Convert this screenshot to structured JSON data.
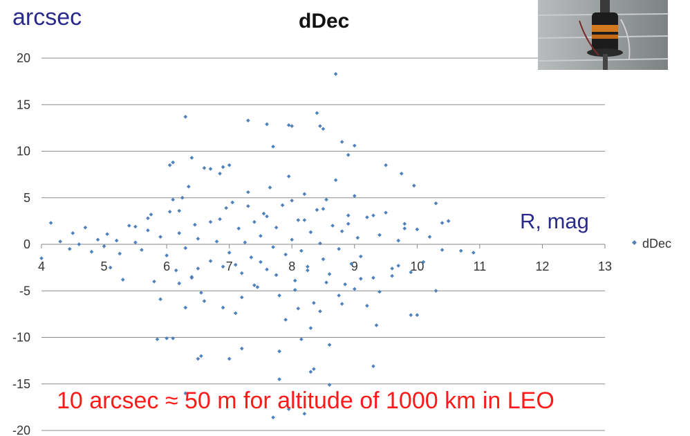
{
  "chart_data": {
    "type": "scatter",
    "title": "dDec",
    "ylabel": "arcsec",
    "xlabel": "R, mag",
    "xlim": [
      4,
      13
    ],
    "ylim": [
      -20,
      20
    ],
    "xticks": [
      "4",
      "5",
      "6",
      "7",
      "8",
      "9",
      "10",
      "11",
      "12",
      "13"
    ],
    "yticks": [
      "20",
      "15",
      "10",
      "5",
      "0",
      "-5",
      "-10",
      "-15",
      "-20"
    ],
    "grid": "horizontal",
    "legend_position": "right",
    "annotation": "10 arcsec ≈ 50 m for altitude of 1000 km in LEO",
    "series": [
      {
        "name": "dDec",
        "color": "#4f81bd",
        "x": [
          4.0,
          4.15,
          4.3,
          4.45,
          4.5,
          4.6,
          4.7,
          4.8,
          4.9,
          5.0,
          5.05,
          5.1,
          5.2,
          5.25,
          5.3,
          5.4,
          5.5,
          5.6,
          5.7,
          5.75,
          5.8,
          5.85,
          5.9,
          6.0,
          6.05,
          6.1,
          6.15,
          6.2,
          6.25,
          6.3,
          6.35,
          6.4,
          6.45,
          6.5,
          6.55,
          6.6,
          6.7,
          6.8,
          6.85,
          6.9,
          6.95,
          7.0,
          7.05,
          7.1,
          7.15,
          7.2,
          7.25,
          7.3,
          7.35,
          7.4,
          7.45,
          7.5,
          7.55,
          7.6,
          7.65,
          7.7,
          7.75,
          7.8,
          7.85,
          7.9,
          7.95,
          8.0,
          8.05,
          8.1,
          8.15,
          8.2,
          8.25,
          8.3,
          8.35,
          8.4,
          8.45,
          8.5,
          8.55,
          8.6,
          8.65,
          8.7,
          8.75,
          8.8,
          8.85,
          8.9,
          8.95,
          9.0,
          9.05,
          9.1,
          9.2,
          9.3,
          9.4,
          9.5,
          9.6,
          9.7,
          9.8,
          9.9,
          10.0,
          10.1,
          10.2,
          10.3,
          10.4,
          10.5,
          10.7,
          10.9,
          6.3,
          6.4,
          6.1,
          6.05,
          6.7,
          6.85,
          6.9,
          7.0,
          7.3,
          7.6,
          7.7,
          7.95,
          8.0,
          8.4,
          8.45,
          8.5,
          8.7,
          8.8,
          8.9,
          9.0,
          9.5,
          9.75,
          9.95,
          6.3,
          6.5,
          7.8,
          7.95,
          8.6,
          9.3,
          7.2,
          8.3,
          7.7,
          8.2,
          6.1,
          6.3,
          6.55,
          7.0,
          7.8,
          8.15,
          8.35,
          8.6,
          9.35,
          9.9,
          6.2,
          6.4,
          6.6,
          6.9,
          7.2,
          7.5,
          7.75,
          8.05,
          8.25,
          8.55,
          8.8,
          9.1,
          9.4,
          9.7,
          5.9,
          6.0,
          6.5,
          7.1,
          7.4,
          7.9,
          8.1,
          8.3,
          8.45,
          8.75,
          9.0,
          9.2,
          9.6,
          10.0,
          10.3,
          5.5,
          5.7,
          6.2,
          6.7,
          7.3,
          7.6,
          8.0,
          8.2,
          8.5,
          8.9,
          9.3,
          9.8,
          10.4
        ],
        "y": [
          -1.5,
          2.3,
          0.3,
          -0.5,
          1.2,
          0.0,
          1.8,
          -0.8,
          0.5,
          -0.2,
          1.1,
          -2.5,
          0.4,
          -1.0,
          -3.8,
          2.0,
          0.2,
          -0.6,
          1.5,
          3.2,
          -4.0,
          -10.2,
          0.8,
          -1.2,
          3.5,
          4.8,
          -2.8,
          1.2,
          5.0,
          -0.4,
          6.2,
          -3.5,
          2.1,
          0.6,
          -5.2,
          8.2,
          -1.8,
          0.3,
          2.7,
          -6.8,
          3.9,
          -0.9,
          4.5,
          -2.2,
          1.7,
          -3.1,
          0.2,
          5.6,
          -1.4,
          2.4,
          -4.6,
          0.9,
          3.3,
          -2.7,
          6.1,
          -0.3,
          1.8,
          -5.5,
          4.2,
          -1.1,
          7.3,
          0.5,
          -3.9,
          2.6,
          -0.7,
          5.4,
          -2.4,
          1.3,
          -6.3,
          3.7,
          0.1,
          -1.6,
          4.8,
          -3.2,
          2.0,
          6.9,
          -0.5,
          1.4,
          -4.3,
          3.1,
          -2.1,
          5.2,
          0.7,
          -1.3,
          2.9,
          -3.6,
          1.0,
          3.4,
          -2.6,
          0.4,
          2.2,
          -3.0,
          1.6,
          -1.9,
          0.8,
          4.4,
          -0.6,
          2.5,
          -0.7,
          -0.9,
          13.7,
          9.3,
          8.8,
          8.5,
          8.1,
          7.6,
          8.3,
          8.5,
          13.3,
          12.9,
          10.5,
          12.8,
          12.7,
          14.1,
          12.7,
          12.4,
          18.3,
          11.0,
          9.6,
          10.6,
          8.5,
          7.6,
          6.3,
          -6.8,
          -12.3,
          -14.5,
          -17.7,
          -15.1,
          -13.1,
          -11.2,
          -13.7,
          -18.6,
          -18.2,
          -10.1,
          -16.0,
          -12.0,
          -12.3,
          -11.5,
          -10.2,
          -13.4,
          -10.8,
          -8.7,
          -7.6,
          -4.2,
          -3.6,
          -6.1,
          -2.4,
          -5.7,
          -1.9,
          -3.3,
          -4.9,
          -2.8,
          -4.1,
          -6.4,
          -3.7,
          -5.1,
          -2.3,
          -5.9,
          -10.1,
          -2.6,
          -7.4,
          -4.4,
          -8.1,
          -6.9,
          -9.0,
          -7.2,
          -5.5,
          -4.8,
          -6.6,
          -3.4,
          -7.6,
          -5.0,
          1.9,
          2.8,
          3.6,
          2.4,
          4.1,
          3.0,
          4.7,
          2.6,
          3.8,
          2.2,
          3.1,
          1.7,
          2.3
        ]
      }
    ]
  },
  "legend": {
    "label": "dDec"
  },
  "photo": {
    "alt": "telescope-camera-photo"
  }
}
